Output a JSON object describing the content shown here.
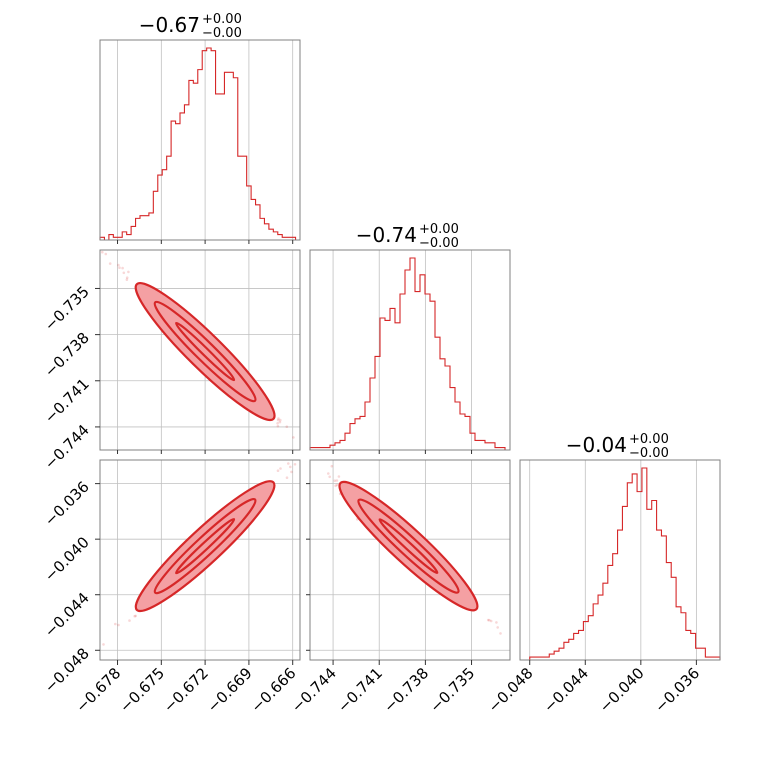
{
  "chart_data": {
    "type": "corner",
    "parameters": [
      {
        "title_value": "−0.67",
        "title_plus": "+0.00",
        "title_minus": "−0.00",
        "range": [
          -0.6792,
          -0.6655
        ],
        "ticks": [
          -0.678,
          -0.675,
          -0.672,
          -0.669,
          -0.666
        ],
        "tick_labels": [
          "−0.678",
          "−0.675",
          "−0.672",
          "−0.669",
          "−0.666"
        ],
        "median": -0.672,
        "sigma": 0.0018,
        "hist_counts": [
          1,
          0,
          2,
          1,
          1,
          3,
          2,
          5,
          8,
          9,
          9,
          10,
          18,
          24,
          26,
          31,
          44,
          43,
          47,
          50,
          59,
          58,
          63,
          70,
          71,
          70,
          54,
          54,
          62,
          62,
          60,
          31,
          31,
          20,
          15,
          13,
          8,
          6,
          4,
          3,
          2,
          1,
          1,
          1,
          0
        ]
      },
      {
        "title_value": "−0.74",
        "title_plus": "+0.00",
        "title_minus": "−0.00",
        "range": [
          -0.7455,
          -0.7325
        ],
        "ticks": [
          -0.744,
          -0.741,
          -0.738,
          -0.735
        ],
        "tick_labels": [
          "−0.744",
          "−0.741",
          "−0.738",
          "−0.735"
        ],
        "median": -0.7391,
        "sigma": 0.0017,
        "hist_counts": [
          1,
          1,
          1,
          1,
          2,
          3,
          4,
          7,
          11,
          13,
          14,
          20,
          30,
          39,
          55,
          54,
          59,
          53,
          65,
          75,
          80,
          66,
          73,
          65,
          62,
          47,
          38,
          35,
          26,
          20,
          15,
          14,
          7,
          4,
          4,
          3,
          3,
          1,
          1,
          0
        ]
      },
      {
        "title_value": "−0.04",
        "title_plus": "+0.00",
        "title_minus": "−0.00",
        "range": [
          -0.0487,
          -0.0343
        ],
        "ticks": [
          -0.048,
          -0.044,
          -0.04,
          -0.036
        ],
        "tick_labels": [
          "−0.048",
          "−0.044",
          "−0.040",
          "−0.036"
        ],
        "median": -0.0405,
        "sigma": 0.0018,
        "hist_counts": [
          0,
          0,
          1,
          1,
          1,
          1,
          2,
          3,
          4,
          6,
          7,
          9,
          10,
          13,
          15,
          19,
          22,
          26,
          32,
          36,
          44,
          52,
          60,
          63,
          57,
          65,
          51,
          54,
          44,
          42,
          33,
          28,
          18,
          16,
          10,
          9,
          4,
          4,
          1,
          1,
          1
        ]
      }
    ],
    "correlations": [
      {
        "pair": [
          1,
          0
        ],
        "rho": -0.99
      },
      {
        "pair": [
          2,
          0
        ],
        "rho": 0.98
      },
      {
        "pair": [
          2,
          1
        ],
        "rho": -0.97
      }
    ],
    "grid": true,
    "color": "#d62728"
  }
}
